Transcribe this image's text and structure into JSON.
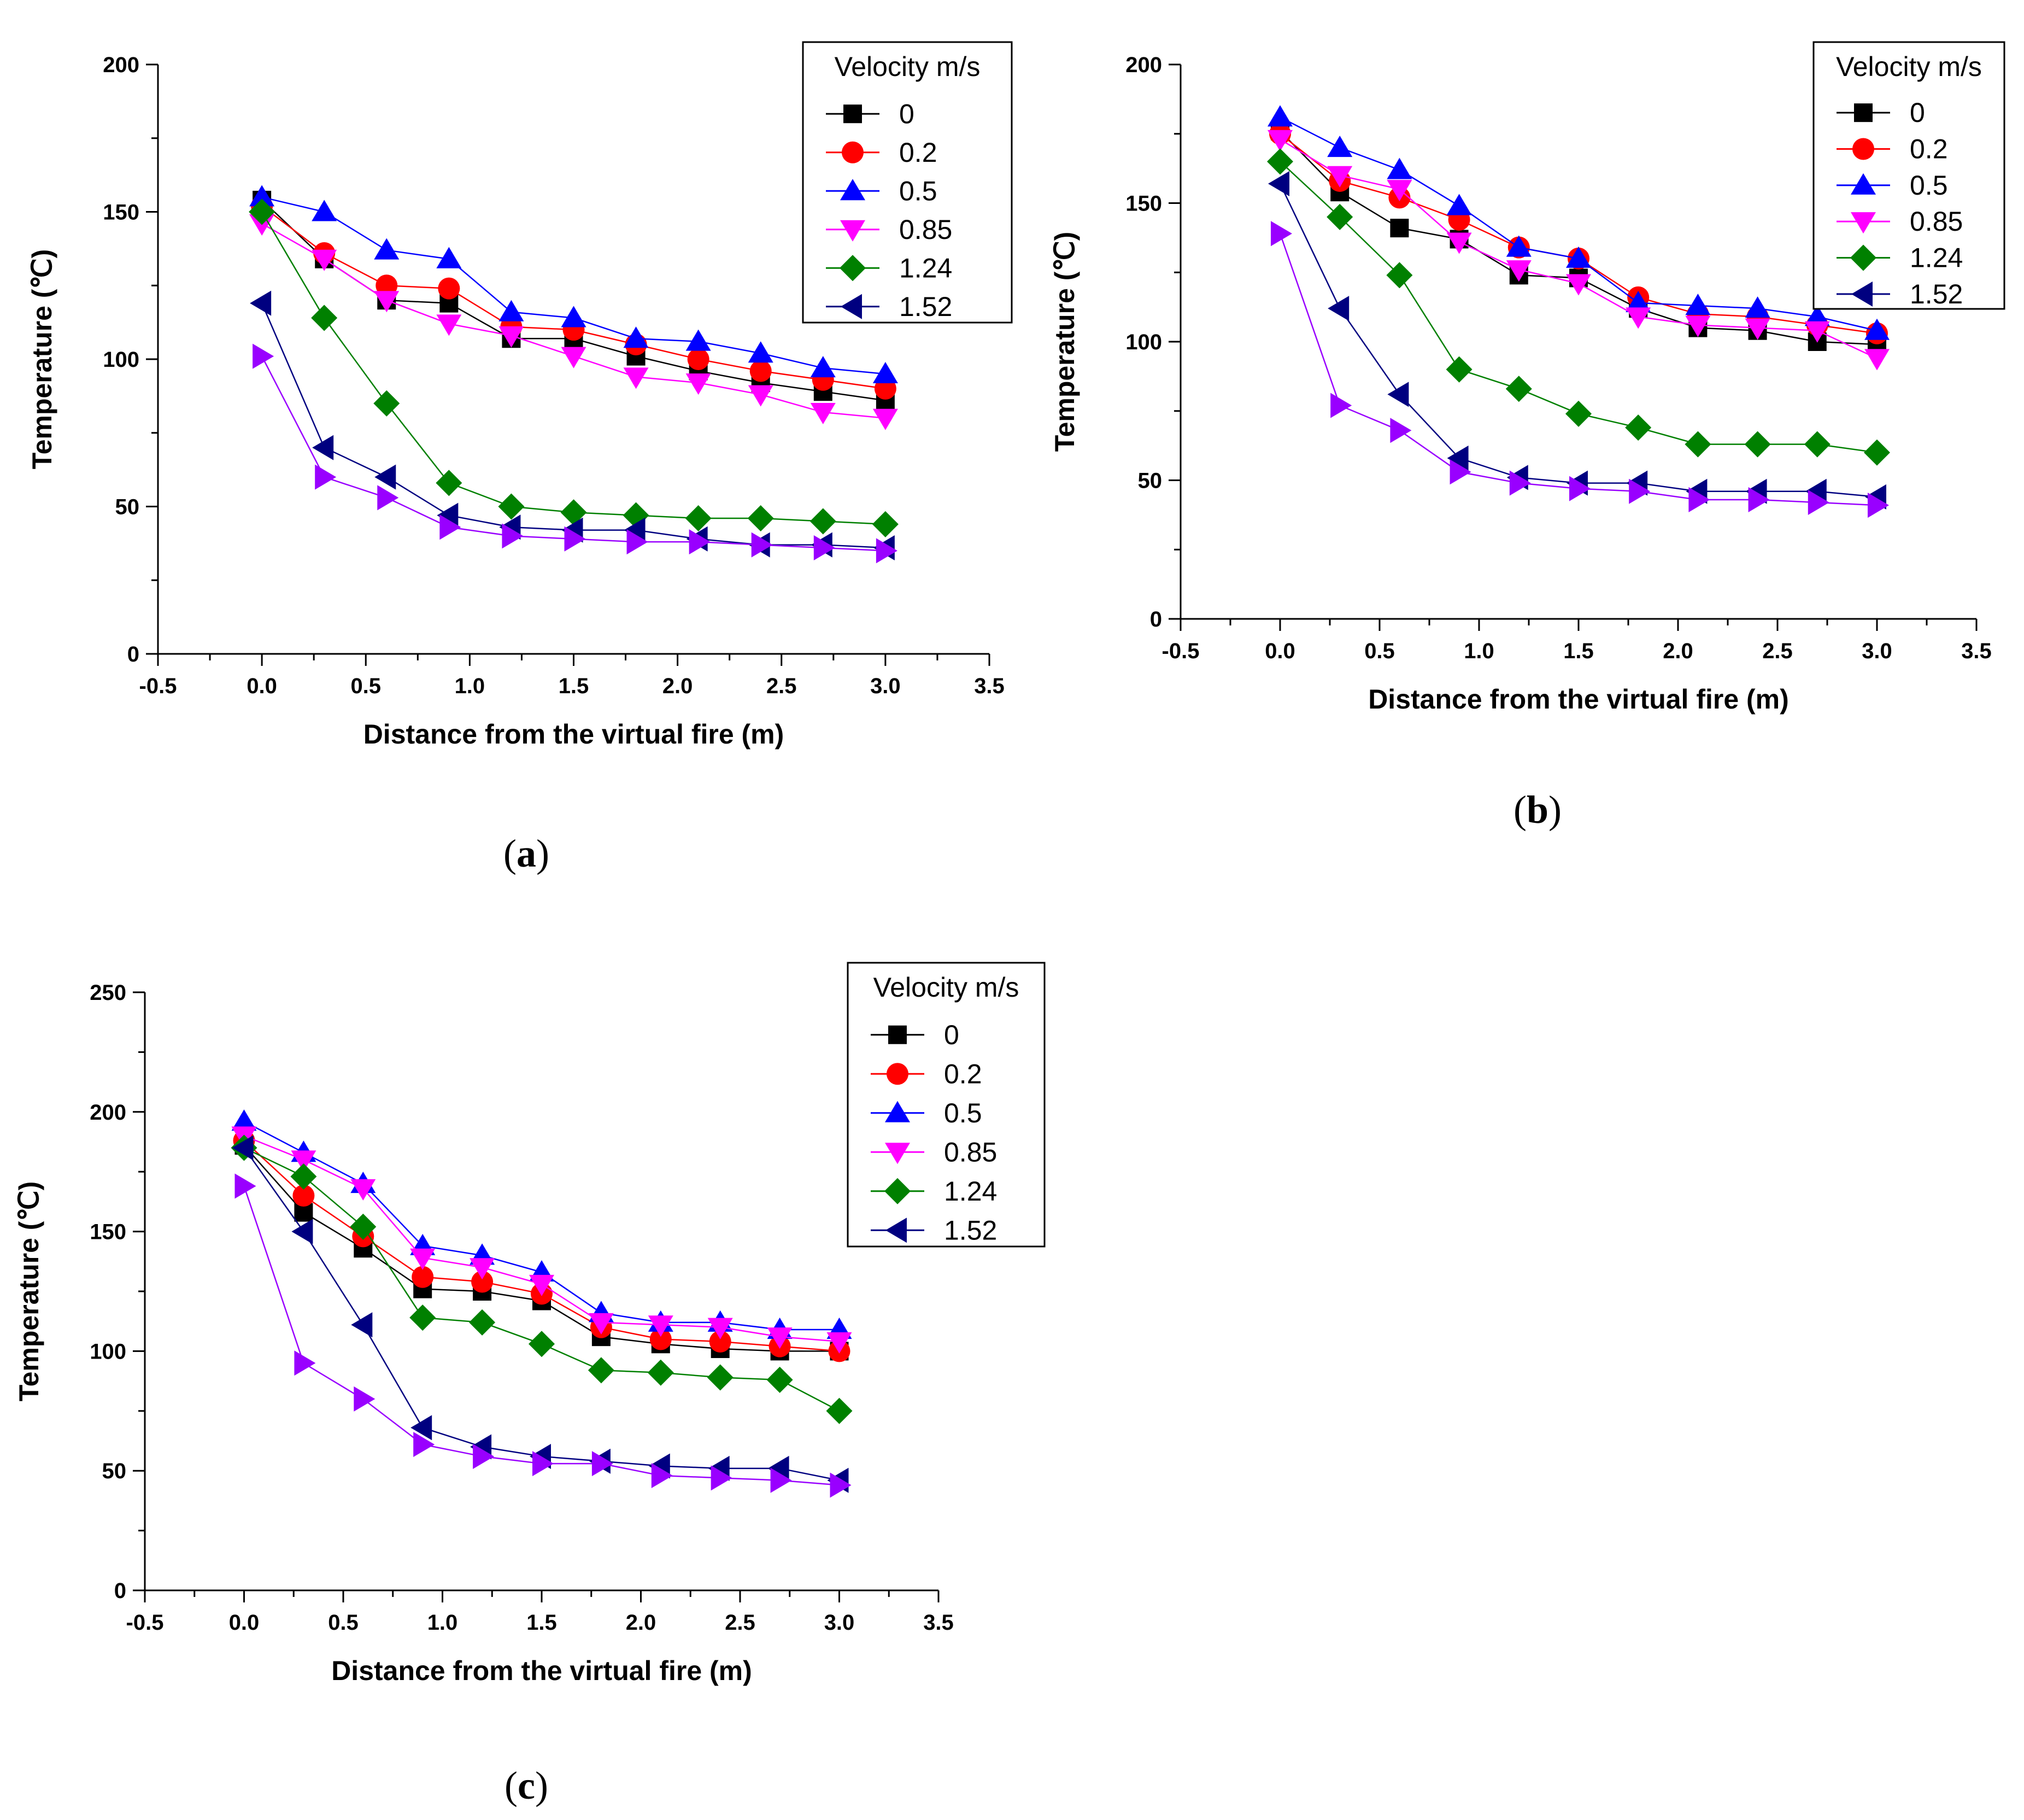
{
  "chart_data": [
    {
      "type": "line",
      "panel_label": "a",
      "xlabel": "Distance from the virtual fire (m)",
      "ylabel": "Temperature (℃)",
      "xlim": [
        -0.5,
        3.5
      ],
      "ylim": [
        0,
        200
      ],
      "xticks": [
        "-0.5",
        "0.0",
        "0.5",
        "1.0",
        "1.5",
        "2.0",
        "2.5",
        "3.0",
        "3.5"
      ],
      "yticks": [
        "0",
        "50",
        "100",
        "150",
        "200"
      ],
      "grid": false,
      "legend": {
        "title": "Velocity m/s",
        "placement": "top-right"
      },
      "x": [
        0,
        0.3,
        0.6,
        0.9,
        1.2,
        1.5,
        1.8,
        2.1,
        2.4,
        2.7,
        3.0
      ],
      "series": [
        {
          "name": "0",
          "marker": "square",
          "color": "#000000",
          "line_color": "#000000",
          "values": [
            154,
            134,
            120,
            119,
            107,
            107,
            101,
            96,
            92,
            89,
            86
          ]
        },
        {
          "name": "0.2",
          "marker": "circle",
          "color": "#ff0000",
          "line_color": "#ff0000",
          "values": [
            152,
            136,
            125,
            124,
            111,
            110,
            105,
            100,
            96,
            93,
            90
          ]
        },
        {
          "name": "0.5",
          "marker": "triangle-up",
          "color": "#0000ff",
          "line_color": "#0000ff",
          "values": [
            155,
            150,
            137,
            134,
            116,
            114,
            107,
            106,
            102,
            97,
            95
          ]
        },
        {
          "name": "0.85",
          "marker": "triangle-down",
          "color": "#ff00ff",
          "line_color": "#ff00ff",
          "values": [
            146,
            134,
            120,
            112,
            108,
            101,
            94,
            92,
            88,
            82,
            80
          ]
        },
        {
          "name": "1.24",
          "marker": "diamond",
          "color": "#008000",
          "line_color": "#008000",
          "values": [
            150,
            114,
            85,
            58,
            50,
            48,
            47,
            46,
            46,
            45,
            44
          ]
        },
        {
          "name": "1.52",
          "marker": "triangle-left",
          "color": "#000080",
          "line_color": "#000080",
          "values": [
            119,
            70,
            60,
            47,
            43,
            42,
            42,
            39,
            37,
            37,
            36
          ]
        },
        {
          "name": "",
          "marker": "triangle-right",
          "color": "#9900ff",
          "line_color": "#9900ff",
          "values": [
            101,
            60,
            53,
            43,
            40,
            39,
            38,
            38,
            37,
            36,
            35
          ]
        }
      ]
    },
    {
      "type": "line",
      "panel_label": "b",
      "xlabel": "Distance from the virtual fire (m)",
      "ylabel": "Temperature (℃)",
      "xlim": [
        -0.5,
        3.5
      ],
      "ylim": [
        0,
        200
      ],
      "xticks": [
        "-0.5",
        "0.0",
        "0.5",
        "1.0",
        "1.5",
        "2.0",
        "2.5",
        "3.0",
        "3.5"
      ],
      "yticks": [
        "0",
        "50",
        "100",
        "150",
        "200"
      ],
      "grid": false,
      "legend": {
        "title": "Velocity m/s",
        "placement": "top-right"
      },
      "x": [
        0,
        0.3,
        0.6,
        0.9,
        1.2,
        1.5,
        1.8,
        2.1,
        2.4,
        2.7,
        3.0
      ],
      "series": [
        {
          "name": "0",
          "marker": "square",
          "color": "#000000",
          "line_color": "#000000",
          "values": [
            176,
            154,
            141,
            137,
            124,
            123,
            112,
            105,
            104,
            100,
            99
          ]
        },
        {
          "name": "0.2",
          "marker": "circle",
          "color": "#ff0000",
          "line_color": "#ff0000",
          "values": [
            175,
            158,
            152,
            144,
            134,
            130,
            116,
            110,
            109,
            106,
            103
          ]
        },
        {
          "name": "0.5",
          "marker": "triangle-up",
          "color": "#0000ff",
          "line_color": "#0000ff",
          "values": [
            181,
            170,
            162,
            149,
            134,
            130,
            114,
            113,
            112,
            109,
            104
          ]
        },
        {
          "name": "0.85",
          "marker": "triangle-down",
          "color": "#ff00ff",
          "line_color": "#ff00ff",
          "values": [
            173,
            160,
            155,
            136,
            126,
            121,
            109,
            106,
            105,
            104,
            94
          ]
        },
        {
          "name": "1.24",
          "marker": "diamond",
          "color": "#008000",
          "line_color": "#008000",
          "values": [
            165,
            145,
            124,
            90,
            83,
            74,
            69,
            63,
            63,
            63,
            60
          ]
        },
        {
          "name": "1.52",
          "marker": "triangle-left",
          "color": "#000080",
          "line_color": "#000080",
          "values": [
            157,
            112,
            81,
            58,
            51,
            49,
            49,
            46,
            46,
            46,
            44
          ]
        },
        {
          "name": "",
          "marker": "triangle-right",
          "color": "#9900ff",
          "line_color": "#9900ff",
          "values": [
            139,
            77,
            68,
            53,
            49,
            47,
            46,
            43,
            43,
            42,
            41
          ]
        }
      ]
    },
    {
      "type": "line",
      "panel_label": "c",
      "xlabel": "Distance from the virtual fire (m)",
      "ylabel": "Temperature (℃)",
      "xlim": [
        -0.5,
        3.5
      ],
      "ylim": [
        0,
        250
      ],
      "xticks": [
        "-0.5",
        "0.0",
        "0.5",
        "1.0",
        "1.5",
        "2.0",
        "2.5",
        "3.0",
        "3.5"
      ],
      "yticks": [
        "0",
        "50",
        "100",
        "150",
        "200",
        "250"
      ],
      "grid": false,
      "legend": {
        "title": "Velocity m/s",
        "placement": "top-right"
      },
      "x": [
        0,
        0.3,
        0.6,
        0.9,
        1.2,
        1.5,
        1.8,
        2.1,
        2.4,
        2.7,
        3.0
      ],
      "series": [
        {
          "name": "0",
          "marker": "square",
          "color": "#000000",
          "line_color": "#000000",
          "values": [
            186,
            158,
            143,
            126,
            125,
            121,
            106,
            103,
            101,
            100,
            100
          ]
        },
        {
          "name": "0.2",
          "marker": "circle",
          "color": "#ff0000",
          "line_color": "#ff0000",
          "values": [
            188,
            165,
            148,
            131,
            129,
            124,
            110,
            105,
            104,
            102,
            100
          ]
        },
        {
          "name": "0.5",
          "marker": "triangle-up",
          "color": "#0000ff",
          "line_color": "#0000ff",
          "values": [
            196,
            183,
            170,
            144,
            140,
            133,
            116,
            112,
            112,
            109,
            109
          ]
        },
        {
          "name": "0.85",
          "marker": "triangle-down",
          "color": "#ff00ff",
          "line_color": "#ff00ff",
          "values": [
            190,
            180,
            168,
            139,
            135,
            128,
            112,
            111,
            110,
            106,
            104
          ]
        },
        {
          "name": "1.24",
          "marker": "diamond",
          "color": "#008000",
          "line_color": "#008000",
          "values": [
            185,
            173,
            152,
            114,
            112,
            103,
            92,
            91,
            89,
            88,
            75
          ]
        },
        {
          "name": "1.52",
          "marker": "triangle-left",
          "color": "#000080",
          "line_color": "#000080",
          "values": [
            185,
            150,
            111,
            68,
            60,
            56,
            54,
            52,
            51,
            51,
            46
          ]
        },
        {
          "name": "",
          "marker": "triangle-right",
          "color": "#9900ff",
          "line_color": "#9900ff",
          "values": [
            169,
            95,
            80,
            61,
            56,
            53,
            53,
            48,
            47,
            46,
            44
          ]
        }
      ]
    }
  ]
}
